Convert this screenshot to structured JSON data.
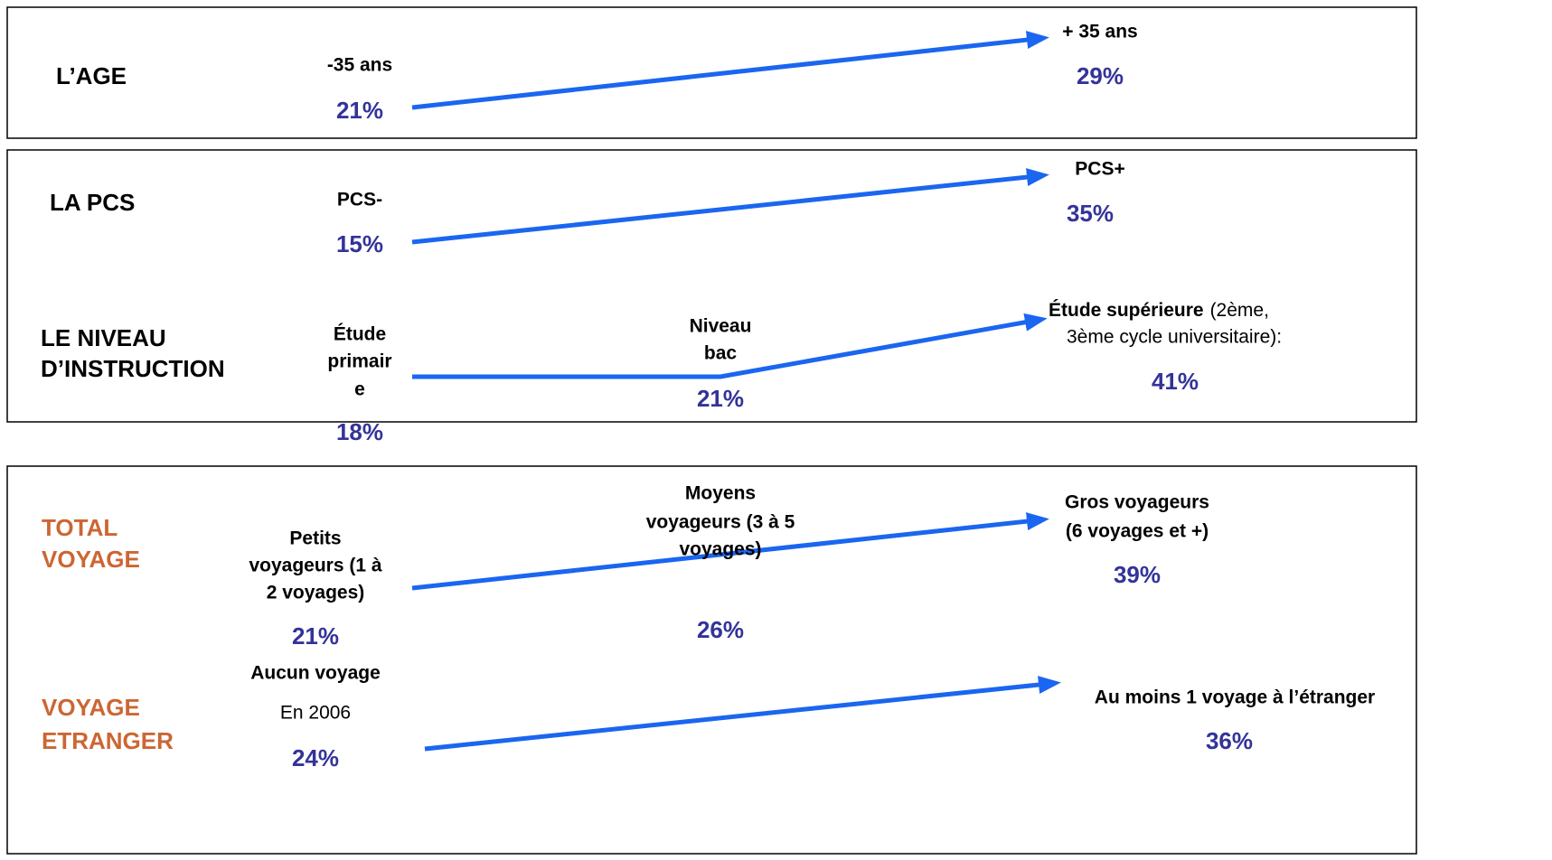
{
  "rows": [
    {
      "label": [
        "L’AGE"
      ],
      "points": [
        {
          "label": [
            "-35 ans"
          ],
          "value": "21%"
        },
        {
          "label": [
            "+ 35 ans"
          ],
          "value": "29%"
        }
      ]
    },
    {
      "label": [
        "LA PCS"
      ],
      "points": [
        {
          "label": [
            "PCS-"
          ],
          "value": "15%"
        },
        {
          "label": [
            "PCS+"
          ],
          "value": "35%"
        }
      ]
    },
    {
      "label": [
        "LE NIVEAU",
        "D’INSTRUCTION"
      ],
      "points": [
        {
          "label": [
            "Étude",
            "primair",
            "e"
          ],
          "value": "18%"
        },
        {
          "label": [
            "Niveau",
            "bac"
          ],
          "value": "21%"
        },
        {
          "label_bold": "Étude supérieure",
          "label": [
            "(2ème,",
            "3ème cycle universitaire):"
          ],
          "value": "41%"
        }
      ]
    },
    {
      "label": [
        "TOTAL",
        "VOYAGE"
      ],
      "points": [
        {
          "label": [
            "Petits",
            "voyageurs (1 à",
            "2 voyages)"
          ],
          "value": "21%"
        },
        {
          "label": [
            "Moyens",
            "voyageurs (3 à 5",
            "voyages)"
          ],
          "value": "26%"
        },
        {
          "label": [
            "Gros voyageurs",
            "(6 voyages et +)"
          ],
          "value": "39%"
        }
      ]
    },
    {
      "label": [
        "VOYAGE",
        "ETRANGER"
      ],
      "points": [
        {
          "label": [
            "Aucun voyage"
          ],
          "note": "En 2006",
          "value": "24%"
        },
        {
          "label": [
            "Au moins 1 voyage à l’étranger"
          ],
          "value": "36%"
        }
      ]
    }
  ]
}
